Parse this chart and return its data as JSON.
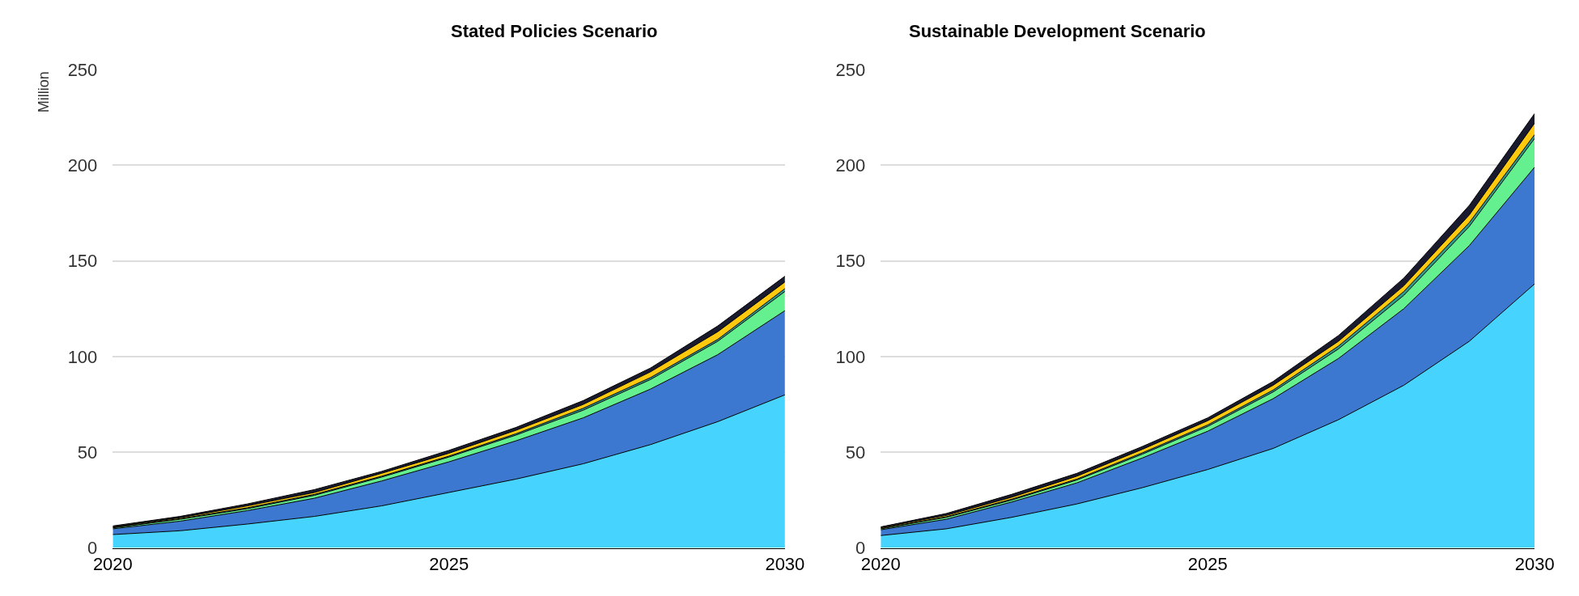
{
  "chart_data": [
    {
      "type": "area",
      "title": "Stated Policies Scenario",
      "ylabel": "Million",
      "stacked": true,
      "x": [
        "2020",
        "2021",
        "2022",
        "2023",
        "2024",
        "2025",
        "2026",
        "2027",
        "2028",
        "2029",
        "2030"
      ],
      "xlim": [
        "2020",
        "2030"
      ],
      "xticks": [
        {
          "value": "2020",
          "label": "2020"
        },
        {
          "value": "2025",
          "label": "2025"
        },
        {
          "value": "2030",
          "label": "2030"
        }
      ],
      "ylim": [
        0,
        250
      ],
      "yticks": [
        0,
        50,
        100,
        150,
        200,
        250
      ],
      "grid": "y",
      "series": [
        {
          "color": "#46d3fe",
          "values": [
            7,
            9,
            12.5,
            16.5,
            22,
            29,
            36,
            44,
            54,
            66,
            80
          ]
        },
        {
          "color": "#3c78d0",
          "values": [
            3,
            5,
            7,
            9.5,
            13,
            16,
            20,
            24,
            29,
            35,
            44
          ]
        },
        {
          "color": "#64f08f",
          "values": [
            0.5,
            1,
            1,
            1.5,
            2,
            2.5,
            3,
            4,
            5,
            7,
            10
          ]
        },
        {
          "color": "#2a9d8f",
          "values": [
            0.2,
            0.3,
            0.5,
            0.5,
            0.5,
            0.5,
            0.7,
            1,
            1,
            1,
            1.5
          ]
        },
        {
          "color": "#ffc90e",
          "values": [
            0.3,
            0.5,
            1,
            1,
            1.5,
            1.5,
            1.8,
            2,
            3,
            4,
            3.5
          ]
        },
        {
          "color": "#1a1a2e",
          "values": [
            0.5,
            0.7,
            1,
            1.5,
            1,
            1.5,
            1.5,
            2,
            2,
            3,
            3
          ]
        }
      ]
    },
    {
      "type": "area",
      "title": "Sustainable Development Scenario",
      "stacked": true,
      "x": [
        "2020",
        "2021",
        "2022",
        "2023",
        "2024",
        "2025",
        "2026",
        "2027",
        "2028",
        "2029",
        "2030"
      ],
      "xlim": [
        "2020",
        "2030"
      ],
      "xticks": [
        {
          "value": "2020",
          "label": "2020"
        },
        {
          "value": "2025",
          "label": "2025"
        },
        {
          "value": "2030",
          "label": "2030"
        }
      ],
      "ylim": [
        0,
        250
      ],
      "yticks": [
        0,
        50,
        100,
        150,
        200,
        250
      ],
      "grid": "y",
      "series": [
        {
          "color": "#46d3fe",
          "values": [
            6.5,
            10,
            16,
            23,
            31.5,
            41,
            52,
            67,
            85,
            108,
            138
          ]
        },
        {
          "color": "#3c78d0",
          "values": [
            3,
            5,
            8,
            11,
            15.5,
            20,
            26,
            32,
            40,
            50,
            61
          ]
        },
        {
          "color": "#64f08f",
          "values": [
            0.5,
            1,
            1,
            1.5,
            2,
            2.5,
            3.5,
            5,
            7,
            10,
            15
          ]
        },
        {
          "color": "#2a9d8f",
          "values": [
            0.2,
            0.3,
            0.5,
            0.5,
            0.7,
            0.8,
            1,
            1.5,
            2,
            2,
            2
          ]
        },
        {
          "color": "#ffc90e",
          "values": [
            0.4,
            0.7,
            1,
            1.5,
            1.8,
            2.2,
            2.5,
            2.5,
            3,
            4,
            6
          ]
        },
        {
          "color": "#1a1a2e",
          "values": [
            0.4,
            1,
            1.5,
            1.5,
            1.5,
            1.5,
            2,
            3,
            4,
            5,
            5
          ]
        }
      ]
    }
  ]
}
